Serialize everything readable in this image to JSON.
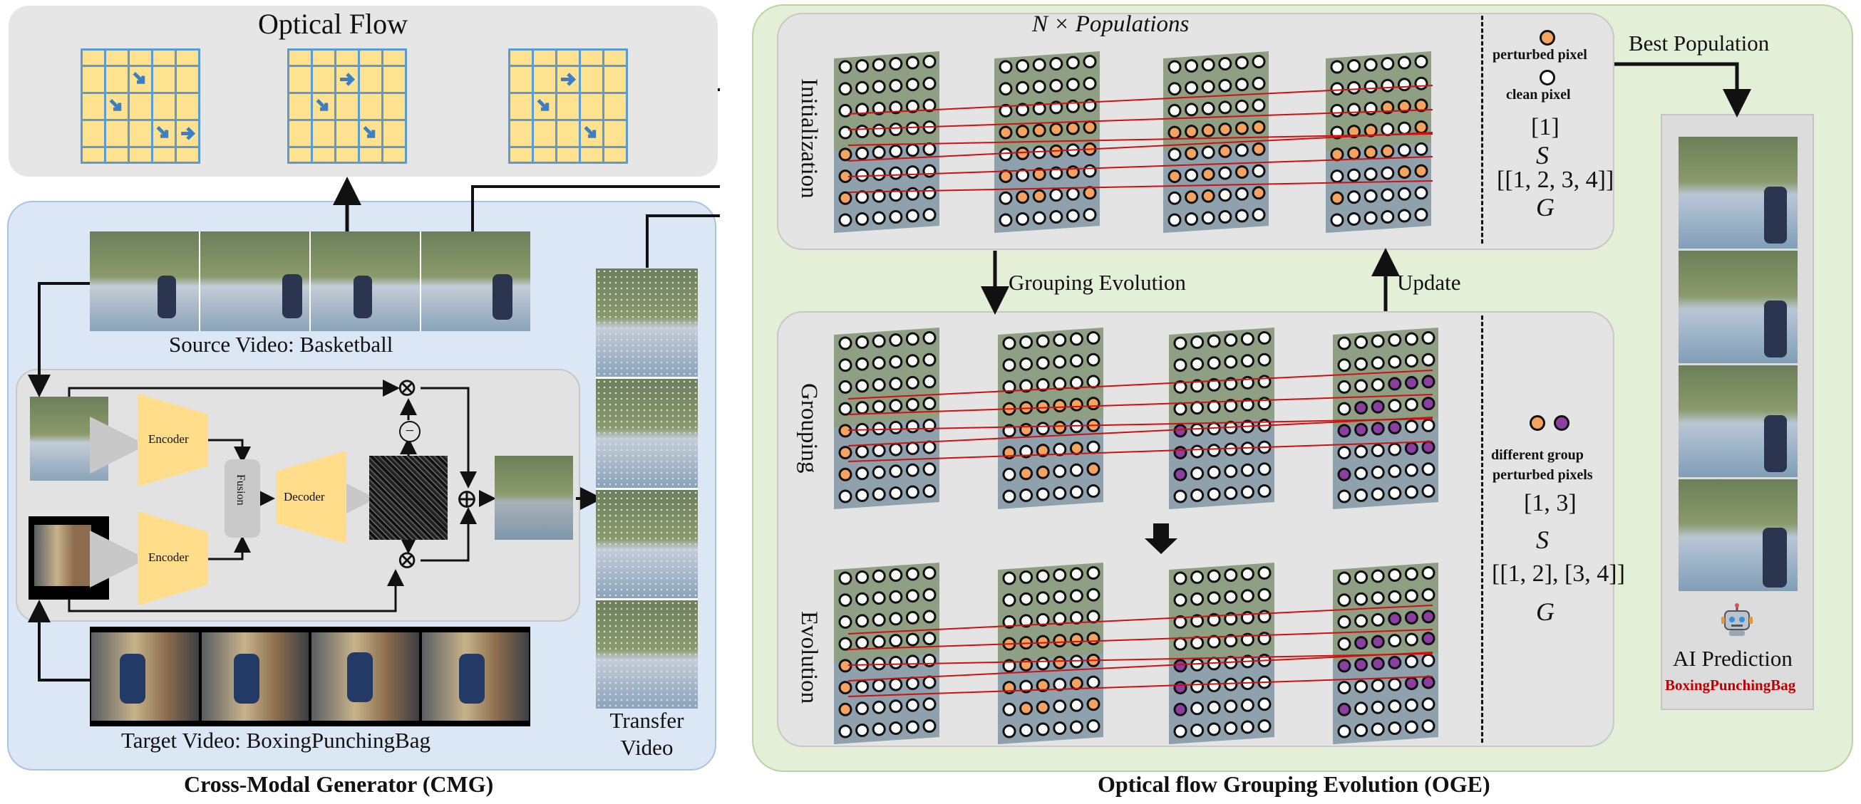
{
  "optical_flow": {
    "title": "Optical Flow"
  },
  "cmg": {
    "source_video_label": "Source Video: Basketball",
    "target_video_label": "Target Video: BoxingPunchingBag",
    "encoder_top": "Encoder",
    "encoder_bottom": "Encoder",
    "fusion": "Fusion",
    "decoder": "Decoder",
    "op_multiply": "⊗",
    "op_minus": "−",
    "op_plus": "⊕",
    "transfer_video_label_line1": "Transfer",
    "transfer_video_label_line2": "Video",
    "caption": "Cross-Modal Generator (CMG)"
  },
  "oge": {
    "populations_title": "N × Populations",
    "initialization_label": "Initialization",
    "grouping_label": "Grouping",
    "evolution_label": "Evolution",
    "grouping_evolution_label": "Grouping Evolution",
    "update_label": "Update",
    "best_population_label": "Best Population",
    "legend_perturbed": "perturbed pixel",
    "legend_clean": "clean  pixel",
    "init_s_value": "[1]",
    "init_s_symbol": "S",
    "init_g_value": "[[1, 2, 3, 4]]",
    "init_g_symbol": "G",
    "legend_group_line1": "different group",
    "legend_group_line2": "perturbed  pixels",
    "group_s_value": "[1, 3]",
    "group_s_symbol": "S",
    "group_g_value": "[[1, 2], [3, 4]]",
    "group_g_symbol": "G",
    "caption": "Optical flow Grouping Evolution (OGE)"
  },
  "prediction": {
    "label": "AI Prediction",
    "value": "BoxingPunchingBag",
    "icon": "robot-icon"
  },
  "colors": {
    "optical_flow_bg": "#e6e6e6",
    "cmg_bg": "#dbe7f5",
    "oge_bg": "#e3efd6",
    "grid_line": "#5b9bd5",
    "grid_cell": "#ffe28f",
    "perturbed_orange": "#f4a460",
    "perturbed_purple": "#8b3fa0",
    "prediction_red": "#c00000"
  }
}
